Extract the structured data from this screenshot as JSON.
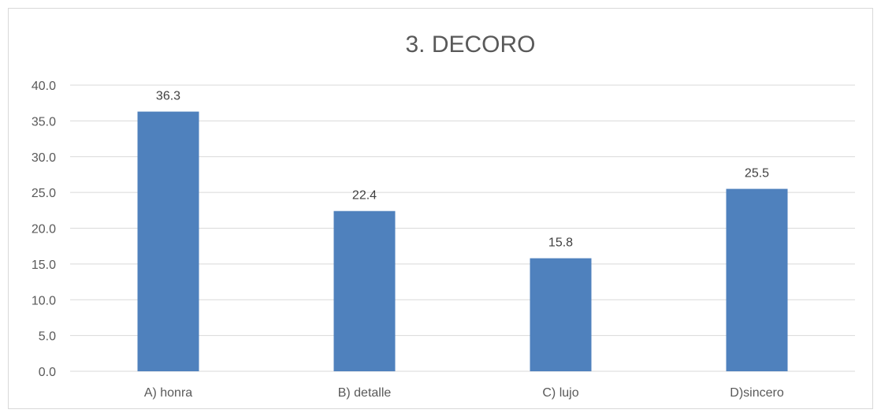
{
  "chart_data": {
    "type": "bar",
    "title": "3. DECORO",
    "xlabel": "",
    "ylabel": "",
    "categories": [
      "A) honra",
      "B) detalle",
      "C) lujo",
      "D)sincero"
    ],
    "values": [
      36.3,
      22.4,
      15.8,
      25.5
    ],
    "data_labels": [
      "36.3",
      "22.4",
      "15.8",
      "25.5"
    ],
    "ylim": [
      0,
      40
    ],
    "yticks": [
      "0.0",
      "5.0",
      "10.0",
      "15.0",
      "20.0",
      "25.0",
      "30.0",
      "35.0",
      "40.0"
    ],
    "bar_color": "#4f81bd",
    "grid": true,
    "legend": "none"
  }
}
